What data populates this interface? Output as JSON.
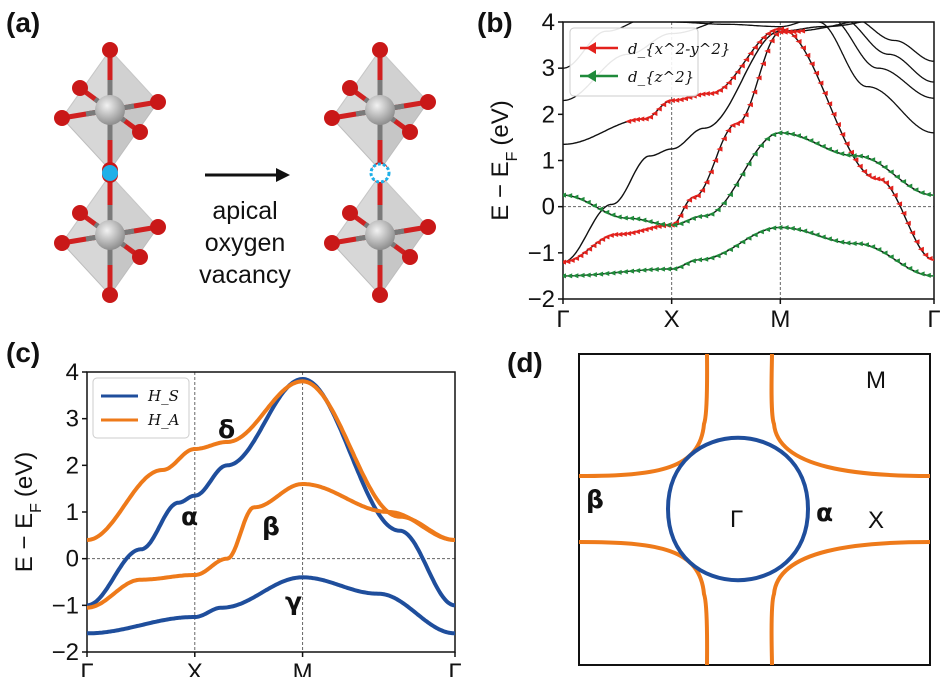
{
  "panels": {
    "a": {
      "label": "(a)",
      "caption_lines": [
        "apical",
        "oxygen",
        "vacancy"
      ]
    },
    "b": {
      "label": "(b)"
    },
    "c": {
      "label": "(c)"
    },
    "d": {
      "label": "(d)"
    }
  },
  "colors": {
    "dx2y2": "#e3211c",
    "dz2": "#1f8a3a",
    "HS": "#1f4e9c",
    "HA": "#ee7a1a",
    "oxygen": "#c91818",
    "metal": "#8f8f8f",
    "vacancy_fill": "#1fb0e8",
    "vacancy_ring": "#1fb0e8"
  },
  "icons": {
    "octahedron": "octahedron-icon",
    "oxygen": "oxygen-atom-icon",
    "metal": "metal-atom-icon",
    "vacancy": "vacancy-icon",
    "arrow": "arrow-right-icon"
  },
  "chart_data": [
    {
      "panel": "b",
      "type": "line",
      "ylabel": "E − E",
      "ylabel_sub": "F",
      "ylabel_unit": "(eV)",
      "ylim": [
        -2,
        4
      ],
      "yticks": [
        "−2",
        "−1",
        "0",
        "1",
        "2",
        "3",
        "4"
      ],
      "xticks": [
        "Γ",
        "X",
        "M",
        "Γ"
      ],
      "k_positions": [
        0,
        1,
        2,
        3.414
      ],
      "grid": "dashed lines at high-symmetry points and E=0",
      "legend_position": "top-left",
      "legend": [
        {
          "name": "d_{x^2-y^2}",
          "color": "#e3211c"
        },
        {
          "name": "d_{z^2}",
          "color": "#1f8a3a"
        }
      ],
      "series": [
        {
          "role": "dx2y2",
          "x": [
            0,
            1,
            2,
            3.414
          ],
          "y": [
            1.35,
            2.3,
            3.85,
            -1.15
          ]
        },
        {
          "role": "dx2y2",
          "x": [
            0,
            1,
            2,
            3.414
          ],
          "y": [
            -1.2,
            -0.4,
            3.8,
            4.0
          ]
        },
        {
          "role": "dz2",
          "x": [
            0,
            1,
            2,
            3.414
          ],
          "y": [
            0.25,
            -0.4,
            1.6,
            0.25
          ]
        },
        {
          "role": "dz2",
          "x": [
            0,
            1,
            2,
            3.414
          ],
          "y": [
            -1.5,
            -1.35,
            -0.45,
            -1.5
          ]
        }
      ]
    },
    {
      "panel": "c",
      "type": "line",
      "ylabel": "E − E",
      "ylabel_sub": "F",
      "ylabel_unit": "(eV)",
      "ylim": [
        -2,
        4
      ],
      "yticks": [
        "−2",
        "−1",
        "0",
        "1",
        "2",
        "3",
        "4"
      ],
      "xticks": [
        "Γ",
        "X",
        "M",
        "Γ"
      ],
      "k_positions": [
        0,
        1,
        2,
        3.414
      ],
      "legend_position": "top-left",
      "legend": [
        {
          "name": "H_S",
          "color": "#1f4e9c"
        },
        {
          "name": "H_A",
          "color": "#ee7a1a"
        }
      ],
      "band_labels": [
        "δ",
        "α",
        "β",
        "γ"
      ],
      "series": [
        {
          "name": "HS upper",
          "x": [
            0,
            1,
            2,
            3.414
          ],
          "y": [
            -1.0,
            1.35,
            3.85,
            -1.0
          ]
        },
        {
          "name": "HS lower",
          "x": [
            0,
            1,
            2,
            3.414
          ],
          "y": [
            -1.6,
            -1.25,
            -0.4,
            -1.6
          ]
        },
        {
          "name": "HA upper",
          "x": [
            0,
            1,
            2,
            3.414
          ],
          "y": [
            0.4,
            2.35,
            3.8,
            0.4
          ]
        },
        {
          "name": "HA lower",
          "x": [
            0,
            1,
            2,
            3.414
          ],
          "y": [
            -1.05,
            -0.35,
            1.6,
            -1.05
          ]
        }
      ]
    },
    {
      "panel": "d",
      "type": "fermi-surface",
      "points": [
        "M",
        "X",
        "Γ"
      ],
      "pockets": [
        "β",
        "α"
      ]
    }
  ]
}
